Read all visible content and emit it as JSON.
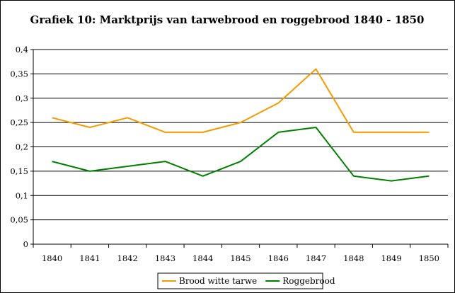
{
  "chart_data": {
    "type": "line",
    "title": "Grafiek 10: Marktprijs van tarwebrood en roggebrood 1840 - 1850",
    "xlabel": "",
    "ylabel": "",
    "categories": [
      "1840",
      "1841",
      "1842",
      "1843",
      "1844",
      "1845",
      "1846",
      "1847",
      "1848",
      "1849",
      "1850"
    ],
    "ylim": [
      0,
      0.4
    ],
    "yticks": [
      "0",
      "0,05",
      "0,1",
      "0,15",
      "0,2",
      "0,25",
      "0,3",
      "0,35",
      "0,4"
    ],
    "grid": true,
    "legend_position": "bottom",
    "series": [
      {
        "name": "Brood witte tarwe",
        "color": "#f59b00",
        "values": [
          0.26,
          0.24,
          0.26,
          0.23,
          0.23,
          0.25,
          0.29,
          0.36,
          0.23,
          0.23,
          0.23
        ]
      },
      {
        "name": "Roggebrood",
        "color": "#008000",
        "values": [
          0.17,
          0.15,
          0.16,
          0.17,
          0.14,
          0.17,
          0.23,
          0.24,
          0.14,
          0.13,
          0.14
        ]
      }
    ]
  }
}
